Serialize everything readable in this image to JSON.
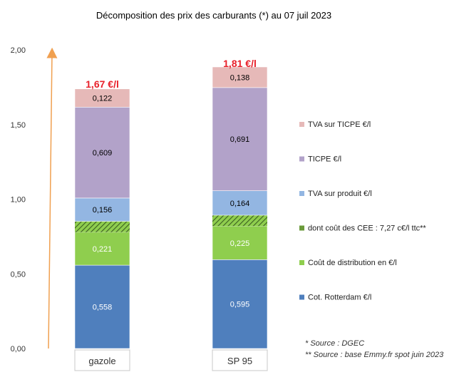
{
  "chart_data": {
    "type": "bar",
    "stacked": true,
    "title": "Décomposition des prix des carburants (*) au 07 juil 2023",
    "categories": [
      "gazole",
      "SP 95"
    ],
    "ylim": [
      0,
      2.0
    ],
    "yticks": [
      "0,00",
      "0,50",
      "1,00",
      "1,50",
      "2,00"
    ],
    "ytick_values": [
      0,
      0.5,
      1.0,
      1.5,
      2.0
    ],
    "totals": [
      "1,67 €/l",
      "1,81 €/l"
    ],
    "totals_values": [
      1.67,
      1.81
    ],
    "series": [
      {
        "name": "Cot. Rotterdam €/l",
        "values": [
          0.558,
          0.595
        ],
        "labels": [
          "0,558",
          "0,595"
        ],
        "color": "#4f7fbd",
        "label_color": "#ffffff"
      },
      {
        "name": "Coût de distribution en €/l",
        "values": [
          0.221,
          0.225
        ],
        "labels": [
          "0,221",
          "0,225"
        ],
        "color": "#8fce4e",
        "label_color": "#ffffff"
      },
      {
        "name": "dont coût des CEE : 7,27 c€/l ttc**",
        "values": [
          0.0727,
          0.0727
        ],
        "labels": [
          "",
          ""
        ],
        "color": "#8fce4e",
        "hatched": true
      },
      {
        "name": "TVA sur produit €/l",
        "values": [
          0.156,
          0.164
        ],
        "labels": [
          "0,156",
          "0,164"
        ],
        "color": "#93b6e2",
        "label_color": "#000000"
      },
      {
        "name": "TICPE €/l",
        "values": [
          0.609,
          0.691
        ],
        "labels": [
          "0,609",
          "0,691"
        ],
        "color": "#b2a2c9",
        "label_color": "#000000"
      },
      {
        "name": "TVA sur TICPE €/l",
        "values": [
          0.122,
          0.138
        ],
        "labels": [
          "0,122",
          "0,138"
        ],
        "color": "#e6b9b8",
        "label_color": "#000000"
      }
    ],
    "legend_order": [
      "TVA sur TICPE €/l",
      "TICPE €/l",
      "TVA sur produit €/l",
      "dont coût des CEE : 7,27 c€/l ttc**",
      "Coût de distribution en €/l",
      "Cot. Rotterdam €/l"
    ],
    "legend_position": "right",
    "grid": false,
    "arrow_color": "#f0a050",
    "notes": [
      "* Source : DGEC",
      "** Source : base Emmy.fr spot juin 2023"
    ]
  }
}
